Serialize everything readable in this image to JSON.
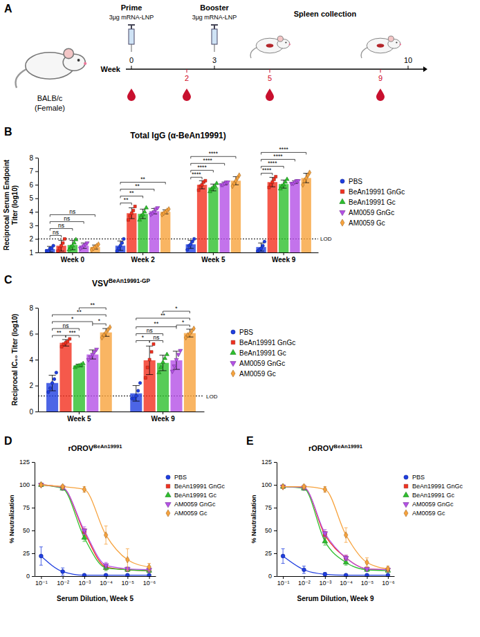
{
  "timeline": {
    "label": "A",
    "range": [
      0,
      10
    ],
    "subject": "BALB/c",
    "subject_note": "(Female)",
    "axis_label": "Week",
    "ticks": [
      0,
      3,
      10
    ],
    "blood_ticks": [
      2,
      5,
      9
    ],
    "blood_draws": [
      0,
      2,
      5,
      9
    ],
    "events": [
      {
        "week": 0,
        "label": "Prime",
        "dose": "3μg mRNA-LNP"
      },
      {
        "week": 3,
        "label": "Booster",
        "dose": "3μg mRNA-LNP"
      }
    ],
    "collection": {
      "label": "Spleen collection",
      "weeks": [
        5,
        9
      ]
    }
  },
  "chart_data": [
    {
      "label": "B",
      "type": "bar",
      "title": "Total IgG (α-BeAn19991)",
      "y_label": "Reciprocal Serum Endpoint Titer (log10)",
      "categories": [
        "Week 0",
        "Week 2",
        "Week 5",
        "Week 9"
      ],
      "ylim": [
        1,
        8
      ],
      "yticks": [
        1,
        2,
        3,
        4,
        5,
        6,
        7,
        8
      ],
      "lod": {
        "value": 2,
        "label": "LOD"
      },
      "legend": "right",
      "series": [
        {
          "name": "PBS",
          "color": "#1f3ee0",
          "marker": "circle",
          "values": [
            1.25,
            1.5,
            1.6,
            1.4
          ],
          "errors": [
            0.2,
            0.35,
            0.3,
            0.3
          ],
          "points": [
            [
              1.1,
              1.1,
              1.3,
              1.3,
              1.5
            ],
            [
              1.1,
              1.3,
              1.5,
              1.7,
              2.0
            ],
            [
              1.2,
              1.5,
              1.6,
              1.8,
              2.0
            ],
            [
              1.1,
              1.2,
              1.3,
              1.5,
              1.8
            ]
          ]
        },
        {
          "name": "BeAn19991 GnGc",
          "color": "#f2301e",
          "marker": "square",
          "values": [
            1.5,
            3.9,
            6.0,
            6.2
          ],
          "errors": [
            0.4,
            0.4,
            0.3,
            0.35
          ],
          "points": [
            [
              1.1,
              1.3,
              1.5,
              1.7,
              2.0
            ],
            [
              3.4,
              3.7,
              3.9,
              4.1,
              4.4
            ],
            [
              5.6,
              5.9,
              6.0,
              6.2,
              6.3
            ],
            [
              5.8,
              6.0,
              6.2,
              6.4,
              6.6
            ]
          ]
        },
        {
          "name": "BeAn19991 Gc",
          "color": "#2dbf2d",
          "marker": "triangle",
          "values": [
            1.55,
            3.85,
            5.8,
            6.05
          ],
          "errors": [
            0.35,
            0.35,
            0.25,
            0.3
          ],
          "points": [
            [
              1.2,
              1.4,
              1.5,
              1.7,
              1.95
            ],
            [
              3.4,
              3.7,
              3.8,
              4.0,
              4.3
            ],
            [
              5.5,
              5.7,
              5.8,
              5.9,
              6.1
            ],
            [
              5.7,
              5.9,
              6.0,
              6.2,
              6.4
            ]
          ]
        },
        {
          "name": "AM0059 GnGc",
          "color": "#b450e6",
          "marker": "triangle-down",
          "values": [
            1.5,
            4.05,
            6.1,
            6.2
          ],
          "errors": [
            0.2,
            0.2,
            0.1,
            0.1
          ],
          "points": [
            [
              1.3,
              1.4,
              1.5,
              1.6,
              1.7
            ],
            [
              3.8,
              3.9,
              4.0,
              4.2,
              4.3
            ],
            [
              6.0,
              6.0,
              6.1,
              6.2,
              6.2
            ],
            [
              6.1,
              6.1,
              6.2,
              6.3,
              6.3
            ]
          ]
        },
        {
          "name": "AM0059 Gc",
          "color": "#f7a23c",
          "marker": "diamond",
          "values": [
            1.4,
            4.0,
            6.3,
            6.5
          ],
          "errors": [
            0.15,
            0.15,
            0.3,
            0.35
          ],
          "points": [
            [
              1.2,
              1.3,
              1.4,
              1.5,
              1.6
            ],
            [
              3.8,
              3.9,
              4.0,
              4.1,
              4.2
            ],
            [
              5.9,
              6.1,
              6.3,
              6.5,
              6.7
            ],
            [
              6.0,
              6.3,
              6.5,
              6.7,
              6.9
            ]
          ]
        }
      ],
      "comparisons": [
        {
          "category": "Week 0",
          "groups": [
            "PBS",
            "BeAn19991 GnGc"
          ],
          "label": "ns"
        },
        {
          "category": "Week 0",
          "groups": [
            "PBS",
            "BeAn19991 Gc"
          ],
          "label": "ns"
        },
        {
          "category": "Week 0",
          "groups": [
            "PBS",
            "AM0059 GnGc"
          ],
          "label": "ns"
        },
        {
          "category": "Week 0",
          "groups": [
            "PBS",
            "AM0059 Gc"
          ],
          "label": "ns"
        },
        {
          "category": "Week 2",
          "groups": [
            "PBS",
            "BeAn19991 GnGc"
          ],
          "label": "**"
        },
        {
          "category": "Week 2",
          "groups": [
            "PBS",
            "BeAn19991 Gc"
          ],
          "label": "**"
        },
        {
          "category": "Week 2",
          "groups": [
            "PBS",
            "AM0059 GnGc"
          ],
          "label": "**"
        },
        {
          "category": "Week 2",
          "groups": [
            "PBS",
            "AM0059 Gc"
          ],
          "label": "**"
        },
        {
          "category": "Week 5",
          "groups": [
            "PBS",
            "BeAn19991 GnGc"
          ],
          "label": "****"
        },
        {
          "category": "Week 5",
          "groups": [
            "PBS",
            "BeAn19991 Gc"
          ],
          "label": "****"
        },
        {
          "category": "Week 5",
          "groups": [
            "PBS",
            "AM0059 GnGc"
          ],
          "label": "****"
        },
        {
          "category": "Week 5",
          "groups": [
            "PBS",
            "AM0059 Gc"
          ],
          "label": "****"
        },
        {
          "category": "Week 9",
          "groups": [
            "PBS",
            "BeAn19991 GnGc"
          ],
          "label": "****"
        },
        {
          "category": "Week 9",
          "groups": [
            "PBS",
            "BeAn19991 Gc"
          ],
          "label": "****"
        },
        {
          "category": "Week 9",
          "groups": [
            "PBS",
            "AM0059 GnGc"
          ],
          "label": "****"
        },
        {
          "category": "Week 9",
          "groups": [
            "PBS",
            "AM0059 Gc"
          ],
          "label": "****"
        }
      ]
    },
    {
      "label": "C",
      "type": "bar",
      "title": "VSV",
      "title_sup": "BeAn19991-GP",
      "y_label": "Reciprocal IC₅₀ Titer (log10)",
      "categories": [
        "Week 5",
        "Week 9"
      ],
      "ylim": [
        0,
        8
      ],
      "yticks": [
        0,
        2,
        4,
        6,
        8
      ],
      "lod": {
        "value": 1.2,
        "label": "LOD"
      },
      "legend": "right",
      "series": [
        {
          "name": "PBS",
          "color": "#1f3ee0",
          "marker": "circle",
          "values": [
            2.2,
            1.4
          ],
          "errors": [
            0.6,
            0.6
          ],
          "points": [
            [
              1.5,
              1.8,
              2.2,
              2.5,
              3.0
            ],
            [
              1.0,
              1.0,
              1.2,
              1.6,
              2.2
            ]
          ]
        },
        {
          "name": "BeAn19991 GnGc",
          "color": "#f2301e",
          "marker": "square",
          "values": [
            5.3,
            3.95
          ],
          "errors": [
            0.25,
            1.1
          ],
          "points": [
            [
              5.0,
              5.2,
              5.3,
              5.4,
              5.6
            ],
            [
              2.6,
              3.4,
              4.0,
              4.6,
              5.2
            ]
          ]
        },
        {
          "name": "BeAn19991 Gc",
          "color": "#2dbf2d",
          "marker": "triangle",
          "values": [
            3.55,
            3.75
          ],
          "errors": [
            0.1,
            0.6
          ],
          "points": [
            [
              3.4,
              3.5,
              3.55,
              3.6,
              3.7
            ],
            [
              3.0,
              3.4,
              3.8,
              4.1,
              4.4
            ]
          ]
        },
        {
          "name": "AM0059 GnGc",
          "color": "#b450e6",
          "marker": "triangle-down",
          "values": [
            4.4,
            3.95
          ],
          "errors": [
            0.35,
            0.7
          ],
          "points": [
            [
              4.0,
              4.2,
              4.4,
              4.6,
              4.8
            ],
            [
              3.1,
              3.5,
              4.0,
              4.4,
              4.7
            ]
          ]
        },
        {
          "name": "AM0059 Gc",
          "color": "#f7a23c",
          "marker": "diamond",
          "values": [
            6.1,
            6.05
          ],
          "errors": [
            0.3,
            0.3
          ],
          "points": [
            [
              5.7,
              5.9,
              6.1,
              6.3,
              6.5
            ],
            [
              5.7,
              5.9,
              6.0,
              6.2,
              6.4
            ]
          ]
        }
      ],
      "comparisons": [
        {
          "category": "Week 5",
          "groups": [
            "PBS",
            "BeAn19991 GnGc"
          ],
          "label": "**"
        },
        {
          "category": "Week 5",
          "groups": [
            "BeAn19991 GnGc",
            "BeAn19991 Gc"
          ],
          "label": "***"
        },
        {
          "category": "Week 5",
          "groups": [
            "PBS",
            "BeAn19991 Gc"
          ],
          "label": "ns"
        },
        {
          "category": "Week 5",
          "groups": [
            "PBS",
            "AM0059 GnGc"
          ],
          "label": "*"
        },
        {
          "category": "Week 5",
          "groups": [
            "AM0059 GnGc",
            "AM0059 Gc"
          ],
          "label": "*"
        },
        {
          "category": "Week 5",
          "groups": [
            "PBS",
            "AM0059 Gc"
          ],
          "label": "**"
        },
        {
          "category": "Week 5",
          "groups": [
            "BeAn19991 Gc",
            "AM0059 Gc"
          ],
          "label": "**"
        },
        {
          "category": "Week 9",
          "groups": [
            "PBS",
            "BeAn19991 GnGc"
          ],
          "label": "*"
        },
        {
          "category": "Week 9",
          "groups": [
            "BeAn19991 GnGc",
            "BeAn19991 Gc"
          ],
          "label": "ns"
        },
        {
          "category": "Week 9",
          "groups": [
            "PBS",
            "BeAn19991 Gc"
          ],
          "label": "ns"
        },
        {
          "category": "Week 9",
          "groups": [
            "PBS",
            "AM0059 GnGc"
          ],
          "label": "**"
        },
        {
          "category": "Week 9",
          "groups": [
            "AM0059 GnGc",
            "AM0059 Gc"
          ],
          "label": "*"
        },
        {
          "category": "Week 9",
          "groups": [
            "PBS",
            "AM0059 Gc"
          ],
          "label": "**"
        },
        {
          "category": "Week 9",
          "groups": [
            "BeAn19991 Gc",
            "AM0059 Gc"
          ],
          "label": "*"
        }
      ]
    },
    {
      "label": "D",
      "type": "line",
      "title": "rOROV",
      "title_sup": "BeAn19991",
      "x_label": "Serum Dilution, Week 5",
      "y_label": "% Neutralization",
      "log": "x",
      "legend": "right",
      "x": [
        0.1,
        0.01,
        0.001,
        0.0001,
        1e-05,
        1e-06
      ],
      "xlim": [
        0.2,
        5e-07
      ],
      "xticks": [
        {
          "value": 0.1,
          "label": "10⁻¹"
        },
        {
          "value": 0.01,
          "label": "10⁻²"
        },
        {
          "value": 0.001,
          "label": "10⁻³"
        },
        {
          "value": 0.0001,
          "label": "10⁻⁴"
        },
        {
          "value": 1e-05,
          "label": "10⁻⁵"
        },
        {
          "value": 1e-06,
          "label": "10⁻⁶"
        }
      ],
      "ylim": [
        0,
        125
      ],
      "yticks": [
        0,
        25,
        50,
        75,
        100,
        125
      ],
      "series": [
        {
          "name": "PBS",
          "color": "#1f3ee0",
          "marker": "circle",
          "values": [
            22,
            5,
            1,
            1,
            1,
            1
          ],
          "errors": [
            10,
            4,
            1,
            1,
            1,
            1
          ]
        },
        {
          "name": "BeAn19991 GnGc",
          "color": "#f2301e",
          "marker": "square",
          "values": [
            100,
            97,
            48,
            10,
            7,
            6
          ],
          "errors": [
            1,
            2,
            4,
            3,
            2,
            2
          ]
        },
        {
          "name": "BeAn19991 Gc",
          "color": "#2dbf2d",
          "marker": "triangle",
          "values": [
            100,
            96,
            42,
            9,
            7,
            6
          ],
          "errors": [
            1,
            2,
            4,
            3,
            2,
            2
          ]
        },
        {
          "name": "AM0059 GnGc",
          "color": "#b450e6",
          "marker": "triangle-down",
          "values": [
            100,
            97,
            50,
            12,
            8,
            7
          ],
          "errors": [
            1,
            2,
            4,
            3,
            2,
            2
          ]
        },
        {
          "name": "AM0059 Gc",
          "color": "#f7a23c",
          "marker": "diamond",
          "values": [
            100,
            98,
            95,
            45,
            18,
            10
          ],
          "errors": [
            1,
            2,
            3,
            10,
            12,
            4
          ]
        }
      ]
    },
    {
      "label": "E",
      "type": "line",
      "title": "rOROV",
      "title_sup": "BeAn19991",
      "x_label": "Serum Dilution, Week 9",
      "y_label": "% Neutralization",
      "log": "x",
      "legend": "right",
      "x": [
        0.1,
        0.01,
        0.001,
        0.0001,
        1e-05,
        1e-06
      ],
      "xlim": [
        0.2,
        5e-07
      ],
      "xticks": [
        {
          "value": 0.1,
          "label": "10⁻¹"
        },
        {
          "value": 0.01,
          "label": "10⁻²"
        },
        {
          "value": 0.001,
          "label": "10⁻³"
        },
        {
          "value": 0.0001,
          "label": "10⁻⁴"
        },
        {
          "value": 1e-05,
          "label": "10⁻⁵"
        },
        {
          "value": 1e-06,
          "label": "10⁻⁶"
        }
      ],
      "ylim": [
        0,
        125
      ],
      "yticks": [
        0,
        25,
        50,
        75,
        100,
        125
      ],
      "series": [
        {
          "name": "PBS",
          "color": "#1f3ee0",
          "marker": "circle",
          "values": [
            22,
            7,
            2,
            1,
            1,
            1
          ],
          "errors": [
            8,
            4,
            2,
            1,
            1,
            1
          ]
        },
        {
          "name": "BeAn19991 GnGc",
          "color": "#f2301e",
          "marker": "square",
          "values": [
            98,
            97,
            45,
            20,
            8,
            7
          ],
          "errors": [
            1,
            2,
            4,
            3,
            2,
            2
          ]
        },
        {
          "name": "BeAn19991 Gc",
          "color": "#2dbf2d",
          "marker": "triangle",
          "values": [
            98,
            96,
            38,
            15,
            7,
            6
          ],
          "errors": [
            1,
            2,
            4,
            3,
            2,
            2
          ]
        },
        {
          "name": "AM0059 GnGc",
          "color": "#b450e6",
          "marker": "triangle-down",
          "values": [
            98,
            97,
            47,
            20,
            8,
            7
          ],
          "errors": [
            1,
            2,
            4,
            3,
            2,
            2
          ]
        },
        {
          "name": "AM0059 Gc",
          "color": "#f7a23c",
          "marker": "diamond",
          "values": [
            98,
            98,
            95,
            45,
            15,
            8
          ],
          "errors": [
            1,
            2,
            3,
            8,
            5,
            3
          ]
        }
      ]
    }
  ]
}
